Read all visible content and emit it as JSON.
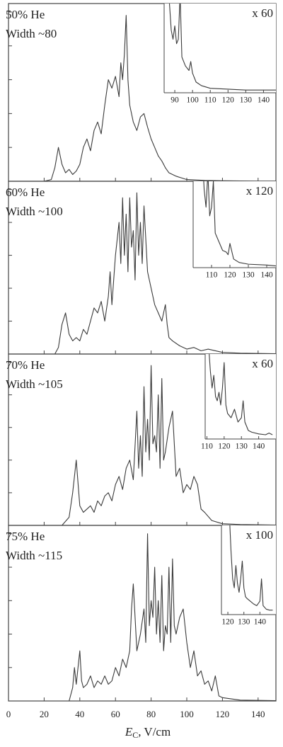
{
  "chart_data": [
    {
      "type": "line",
      "annotations": [
        "50% He",
        "Width ~80"
      ],
      "color": "#3a3a3a",
      "xlim": [
        0,
        150
      ],
      "ylim": [
        0,
        105
      ],
      "yticks": [
        0,
        20,
        40,
        60,
        80,
        100
      ],
      "x": [
        20,
        24,
        26,
        28,
        30,
        32,
        34,
        36,
        38,
        40,
        42,
        44,
        46,
        48,
        50,
        52,
        54,
        56,
        58,
        60,
        62,
        63,
        64,
        65,
        66,
        67,
        68,
        70,
        72,
        74,
        76,
        78,
        80,
        82,
        84,
        86,
        88,
        90,
        94,
        100,
        110,
        120,
        130,
        140,
        150
      ],
      "values": [
        0,
        1,
        8,
        20,
        10,
        5,
        7,
        4,
        6,
        10,
        20,
        25,
        18,
        30,
        35,
        28,
        45,
        60,
        55,
        62,
        50,
        70,
        60,
        75,
        98,
        60,
        45,
        35,
        30,
        38,
        40,
        32,
        25,
        20,
        15,
        12,
        8,
        5,
        3,
        1,
        0.5,
        0.3,
        0.2,
        0.1,
        0.1
      ],
      "inset": {
        "label": "x 60",
        "xlim": [
          84,
          147
        ],
        "ylim": [
          0,
          100
        ],
        "xticks": [
          90,
          100,
          110,
          120,
          130,
          140
        ],
        "x": [
          86,
          88,
          89,
          90,
          91,
          92,
          93,
          94,
          96,
          98,
          99,
          100,
          102,
          105,
          110,
          120,
          130,
          140,
          147
        ],
        "values": [
          130,
          70,
          60,
          75,
          55,
          60,
          110,
          40,
          30,
          25,
          35,
          22,
          12,
          8,
          5,
          4,
          3,
          3,
          3
        ]
      }
    },
    {
      "type": "line",
      "annotations": [
        "60% He",
        "Width ~100"
      ],
      "color": "#3a3a3a",
      "xlim": [
        0,
        150
      ],
      "ylim": [
        0,
        105
      ],
      "yticks": [
        0,
        20,
        40,
        60,
        80,
        100
      ],
      "x": [
        26,
        28,
        30,
        32,
        34,
        36,
        38,
        40,
        42,
        44,
        46,
        48,
        50,
        52,
        54,
        56,
        57,
        58,
        60,
        62,
        63,
        64,
        65,
        66,
        67,
        68,
        69,
        70,
        71,
        72,
        73,
        74,
        75,
        76,
        78,
        80,
        82,
        84,
        86,
        88,
        89,
        90,
        92,
        96,
        100,
        104,
        108,
        112,
        120,
        130,
        150
      ],
      "values": [
        0,
        4,
        18,
        25,
        12,
        8,
        10,
        8,
        15,
        12,
        20,
        28,
        25,
        32,
        20,
        35,
        50,
        30,
        60,
        80,
        55,
        95,
        60,
        85,
        50,
        95,
        65,
        75,
        45,
        98,
        60,
        80,
        55,
        90,
        50,
        40,
        30,
        25,
        20,
        30,
        18,
        10,
        8,
        5,
        3,
        4,
        2,
        3,
        1,
        0.5,
        0.2
      ],
      "inset": {
        "label": "x 120",
        "xlim": [
          100,
          145
        ],
        "ylim": [
          0,
          100
        ],
        "xticks": [
          110,
          120,
          130,
          140
        ],
        "x": [
          105,
          106,
          107,
          108,
          109,
          110,
          111,
          112,
          114,
          116,
          118,
          119,
          120,
          122,
          125,
          130,
          140,
          145
        ],
        "values": [
          130,
          90,
          70,
          110,
          60,
          70,
          100,
          40,
          30,
          20,
          18,
          15,
          28,
          10,
          6,
          4,
          3,
          2
        ]
      }
    },
    {
      "type": "line",
      "annotations": [
        "70% He",
        "Width ~105"
      ],
      "color": "#3a3a3a",
      "xlim": [
        0,
        150
      ],
      "ylim": [
        0,
        105
      ],
      "yticks": [
        0,
        20,
        40,
        60,
        80,
        100
      ],
      "x": [
        30,
        34,
        36,
        38,
        40,
        42,
        44,
        46,
        48,
        50,
        52,
        54,
        56,
        58,
        60,
        62,
        64,
        66,
        68,
        70,
        72,
        73,
        74,
        75,
        76,
        77,
        78,
        79,
        80,
        81,
        82,
        83,
        84,
        85,
        86,
        87,
        88,
        90,
        92,
        94,
        96,
        98,
        100,
        102,
        104,
        106,
        108,
        110,
        114,
        120,
        130,
        150
      ],
      "values": [
        0,
        5,
        20,
        40,
        12,
        8,
        10,
        12,
        8,
        15,
        12,
        18,
        20,
        15,
        25,
        30,
        22,
        35,
        40,
        28,
        70,
        35,
        55,
        30,
        85,
        45,
        65,
        40,
        98,
        50,
        55,
        45,
        80,
        35,
        90,
        40,
        45,
        60,
        70,
        30,
        35,
        20,
        25,
        22,
        30,
        25,
        10,
        8,
        3,
        1,
        0.5,
        0.2
      ],
      "inset": {
        "label": "x 60",
        "xlim": [
          109,
          150
        ],
        "ylim": [
          0,
          100
        ],
        "xticks": [
          110,
          120,
          130,
          140
        ],
        "x": [
          111,
          112,
          113,
          114,
          115,
          116,
          117,
          118,
          119,
          120,
          121,
          122,
          124,
          126,
          128,
          130,
          131,
          132,
          134,
          136,
          140,
          144,
          146,
          148
        ],
        "values": [
          110,
          80,
          60,
          75,
          50,
          45,
          55,
          40,
          60,
          90,
          40,
          30,
          25,
          35,
          20,
          25,
          45,
          20,
          10,
          8,
          6,
          5,
          7,
          5
        ]
      }
    },
    {
      "type": "line",
      "annotations": [
        "75% He",
        "Width ~115"
      ],
      "color": "#3a3a3a",
      "xlim": [
        0,
        150
      ],
      "ylim": [
        0,
        105
      ],
      "yticks": [
        0,
        20,
        40,
        60,
        80,
        100
      ],
      "xticks": [
        0,
        20,
        40,
        60,
        80,
        100,
        120,
        140
      ],
      "xlabel": {
        "symbol": "E",
        "subscript": "C",
        "unit": ", V/cm"
      },
      "x": [
        34,
        36,
        37,
        38,
        40,
        41,
        42,
        44,
        46,
        48,
        50,
        52,
        54,
        56,
        58,
        60,
        62,
        64,
        66,
        68,
        69,
        70,
        72,
        74,
        76,
        77,
        78,
        79,
        80,
        81,
        82,
        83,
        84,
        85,
        86,
        87,
        88,
        89,
        90,
        91,
        92,
        93,
        94,
        96,
        98,
        100,
        102,
        104,
        106,
        108,
        110,
        112,
        114,
        116,
        118,
        120,
        130,
        150
      ],
      "values": [
        0,
        8,
        20,
        10,
        30,
        12,
        8,
        10,
        15,
        8,
        12,
        10,
        15,
        10,
        12,
        20,
        15,
        25,
        20,
        30,
        55,
        70,
        30,
        40,
        55,
        35,
        100,
        45,
        60,
        50,
        80,
        40,
        60,
        35,
        75,
        30,
        45,
        40,
        80,
        35,
        85,
        45,
        40,
        50,
        55,
        35,
        20,
        30,
        15,
        18,
        10,
        12,
        6,
        15,
        3,
        2,
        0.5,
        0.2
      ],
      "inset": {
        "label": "x 100",
        "xlim": [
          116,
          150
        ],
        "ylim": [
          0,
          100
        ],
        "xticks": [
          120,
          130,
          140
        ],
        "x": [
          121,
          122,
          123,
          124,
          125,
          126,
          127,
          128,
          129,
          130,
          131,
          132,
          134,
          136,
          138,
          140,
          141,
          142,
          144,
          146,
          148
        ],
        "values": [
          110,
          70,
          40,
          30,
          55,
          35,
          25,
          40,
          60,
          30,
          20,
          18,
          15,
          12,
          10,
          15,
          40,
          10,
          6,
          5,
          5
        ]
      }
    }
  ]
}
